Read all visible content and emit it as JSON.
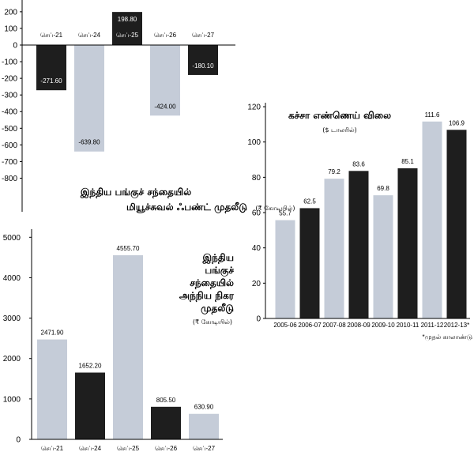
{
  "colors": {
    "light": "#c5ccd8",
    "dark": "#1e1e1e"
  },
  "chart_data": [
    {
      "type": "bar",
      "title_lines": [
        "இந்திய பங்குச் சந்தையில்",
        "மியூச்சுவல் ஃபண்ட் முதலீடு"
      ],
      "unit": "(₹ கோடியில்)",
      "categories": [
        "செப்-21",
        "செப்-24",
        "செப்-25",
        "செப்-26",
        "செப்-27"
      ],
      "values": [
        -271.6,
        -639.8,
        198.8,
        -424.0,
        -180.1
      ],
      "value_labels": [
        "-271.60",
        "-639.80",
        "198.80",
        "-424.00",
        "-180.10"
      ],
      "bar_colors": [
        "dark",
        "light",
        "dark",
        "light",
        "dark"
      ],
      "ylim": [
        -800,
        200
      ],
      "yticks": [
        200,
        100,
        0,
        -100,
        -200,
        -300,
        -400,
        -500,
        -600,
        -700,
        -800
      ],
      "ytick_labels": [
        "200",
        "100",
        "0",
        "-100",
        "-200",
        "-300",
        "-400",
        "-500",
        "-600",
        "-700",
        "-800"
      ]
    },
    {
      "type": "bar",
      "title_lines": [
        "இந்திய",
        "பங்குச்",
        "சந்தையில்",
        "அந்நிய நிகர",
        "முதலீடு"
      ],
      "unit": "(₹ கோடியில்)",
      "categories": [
        "செப்-21",
        "செப்-24",
        "செப்-25",
        "செப்-26",
        "செப்-27"
      ],
      "values": [
        2471.9,
        1652.2,
        4555.7,
        805.5,
        630.9
      ],
      "value_labels": [
        "2471.90",
        "1652.20",
        "4555.70",
        "805.50",
        "630.90"
      ],
      "bar_colors": [
        "light",
        "dark",
        "light",
        "dark",
        "light"
      ],
      "ylim": [
        0,
        5000
      ],
      "yticks": [
        0,
        1000,
        2000,
        3000,
        4000,
        5000
      ],
      "ytick_labels": [
        "0",
        "1000",
        "2000",
        "3000",
        "4000",
        "5000"
      ]
    },
    {
      "type": "bar",
      "title_lines": [
        "கச்சா எண்ணெய் விலை"
      ],
      "unit": "($ டாலரில்)",
      "categories": [
        "2005-06",
        "2006-07",
        "2007-08",
        "2008-09",
        "2009-10",
        "2010-11",
        "2011-12",
        "2012-13*"
      ],
      "values": [
        55.7,
        62.5,
        79.2,
        83.6,
        69.8,
        85.1,
        111.6,
        106.9
      ],
      "value_labels": [
        "55.7",
        "62.5",
        "79.2",
        "83.6",
        "69.8",
        "85.1",
        "111.6",
        "106.9"
      ],
      "bar_colors": [
        "light",
        "dark",
        "light",
        "dark",
        "light",
        "dark",
        "light",
        "dark"
      ],
      "ylim": [
        0,
        120
      ],
      "yticks": [
        0,
        20,
        40,
        60,
        80,
        100,
        120
      ],
      "ytick_labels": [
        "0",
        "20",
        "40",
        "60",
        "80",
        "100",
        "120"
      ],
      "footnote": "*முதல் காலாண்டு"
    }
  ]
}
